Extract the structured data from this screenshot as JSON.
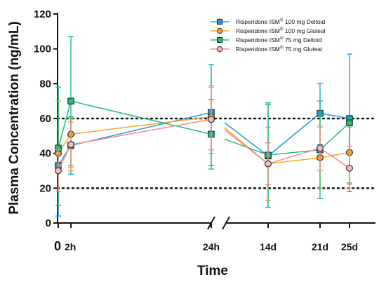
{
  "chart_data": {
    "type": "line",
    "xlabel": "Time",
    "ylabel": "Plasma Concentration (ng/mL)",
    "ylim": [
      0,
      120
    ],
    "yticks": [
      0,
      20,
      40,
      60,
      80,
      100,
      120
    ],
    "x_categories": [
      "0",
      "2h",
      "24h",
      "14d",
      "21d",
      "25d"
    ],
    "axis_break": "between 24h and 14d",
    "reference_lines": [
      20,
      60
    ],
    "legend_position": "top-right",
    "series": [
      {
        "name": "Risperidone ISM® 100 mg Deltoid",
        "legend_main": "Risperidone ISM",
        "legend_sup": "®",
        "legend_rest": " 100 mg Deltoid",
        "color": "#1a9fd8",
        "fill": "#1a9fd8",
        "marker": "square",
        "x": [
          "0",
          "2h",
          "24h",
          "14d",
          "21d",
          "25d"
        ],
        "values": [
          33,
          44.5,
          63.5,
          38.5,
          63,
          60
        ],
        "errors": [
          [
            4,
            78
          ],
          [
            28,
            61
          ],
          [
            33,
            91
          ],
          [
            9,
            68
          ],
          [
            45,
            80
          ],
          [
            23,
            97
          ]
        ]
      },
      {
        "name": "Risperidone ISM® 100 mg Gluteal",
        "legend_main": "Risperidone ISM",
        "legend_sup": "®",
        "legend_rest": " 100 mg Gluteal",
        "color": "#f5a623",
        "fill": "#f5a623",
        "marker": "circle",
        "x": [
          "0",
          "2h",
          "24h",
          "14d",
          "21d",
          "25d"
        ],
        "values": [
          40,
          51,
          61,
          34,
          37.5,
          40.5
        ],
        "errors": [
          [
            10,
            70
          ],
          [
            30,
            60
          ],
          [
            40,
            79
          ],
          [
            13,
            55
          ],
          [
            20,
            55
          ],
          [
            22,
            55
          ]
        ]
      },
      {
        "name": "Risperidone ISM® 75 mg Deltoid",
        "legend_main": "Risperidone ISM",
        "legend_sup": "®",
        "legend_rest": " 75 mg Deltoid",
        "color": "#1fbf7a",
        "fill": "#1fbf7a",
        "marker": "square",
        "x": [
          "0",
          "2h",
          "24h",
          "14d",
          "21d",
          "25d"
        ],
        "values": [
          43,
          70,
          51,
          39,
          42,
          57.5
        ],
        "errors": [
          [
            10,
            78
          ],
          [
            33,
            107
          ],
          [
            31,
            71
          ],
          [
            9,
            69
          ],
          [
            14,
            70
          ],
          [
            18,
            60
          ]
        ]
      },
      {
        "name": "Risperidone ISM® 75 mg Gluteal",
        "legend_main": "Risperidone ISM",
        "legend_sup": "®",
        "legend_rest": " 75 mg Gluteal",
        "color": "#f08b8b",
        "fill": "#f9b9b9",
        "marker": "circle",
        "x": [
          "0",
          "2h",
          "24h",
          "14d",
          "21d",
          "25d"
        ],
        "values": [
          30,
          45,
          59.5,
          34,
          43,
          31.5
        ],
        "errors": [
          [
            18,
            42
          ],
          [
            32,
            58
          ],
          [
            42,
            78
          ],
          [
            22,
            46
          ],
          [
            30,
            56
          ],
          [
            20,
            44
          ]
        ]
      }
    ]
  }
}
